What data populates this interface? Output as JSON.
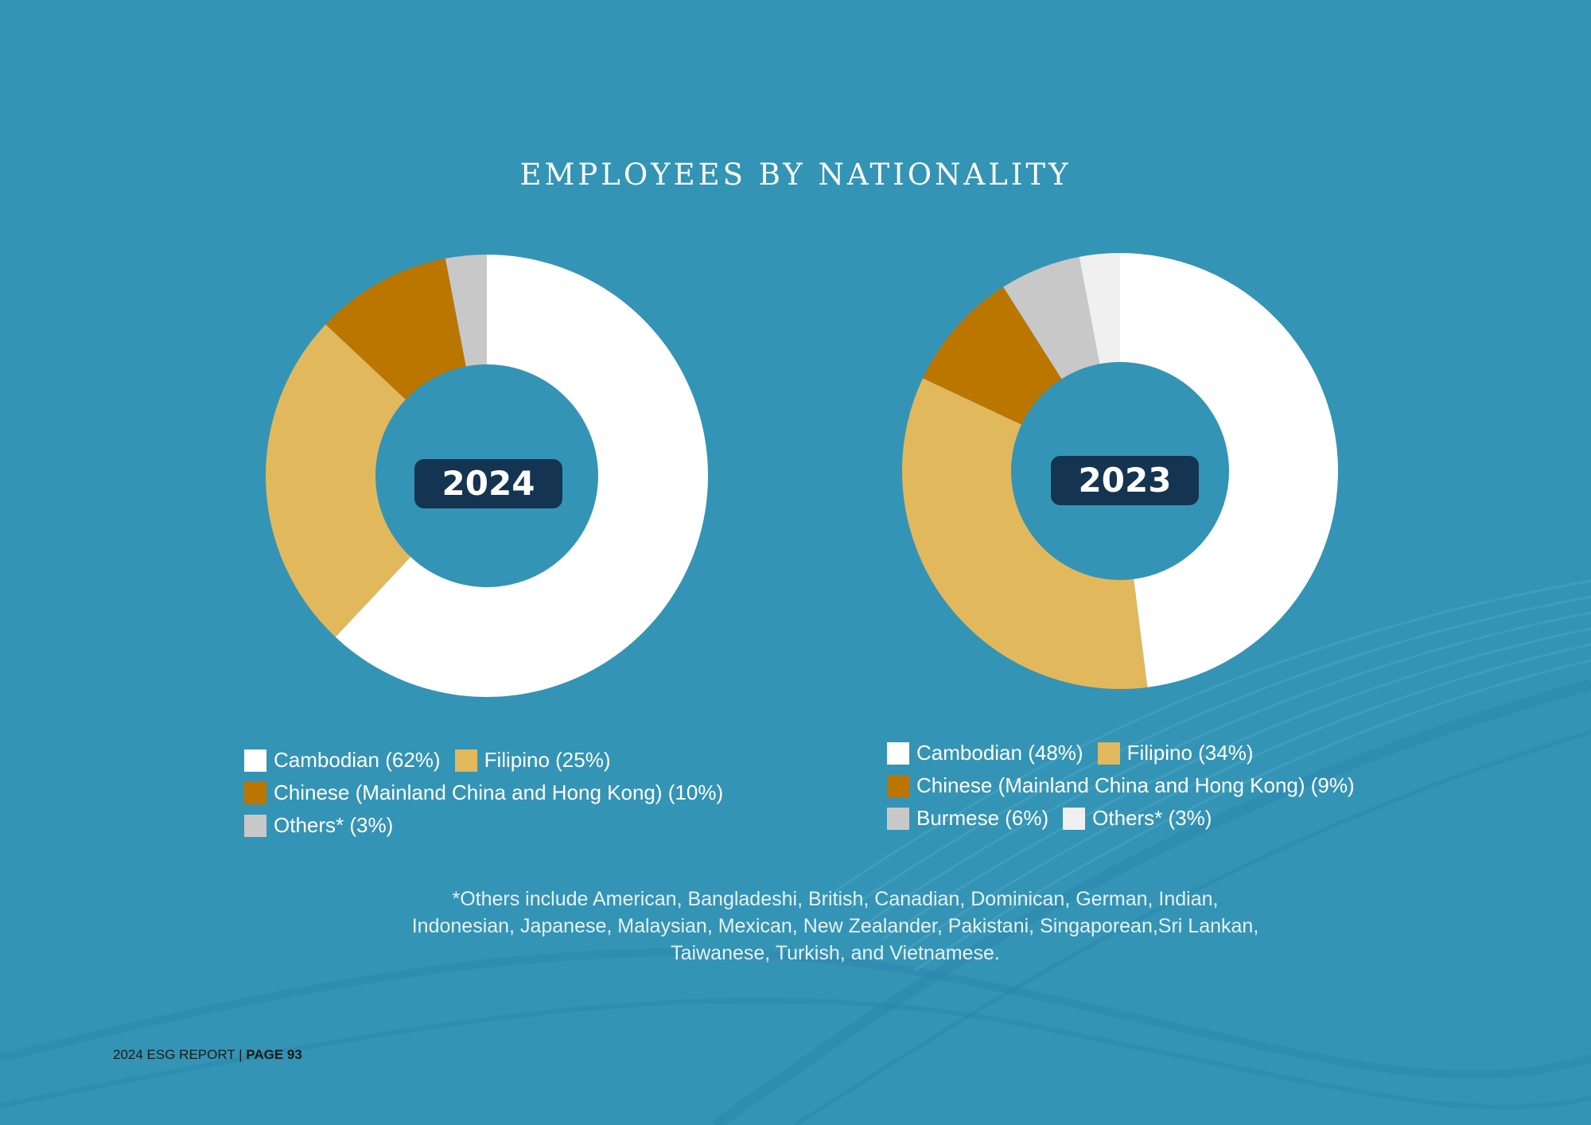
{
  "title": "EMPLOYEES BY NATIONALITY",
  "colors": {
    "background": "#3494b5",
    "cambodian": "#ffffff",
    "filipino": "#e2b85d",
    "chinese": "#bb7600",
    "others_2024": "#c8c8c8",
    "burmese": "#c8c8c8",
    "others_2023": "#f0f0f0",
    "badge": "#143451"
  },
  "chart_data": [
    {
      "type": "pie",
      "title": "2024",
      "categories": [
        "Cambodian",
        "Filipino",
        "Chinese (Mainland China and Hong Kong)",
        "Others*"
      ],
      "values": [
        62,
        25,
        10,
        3
      ],
      "colors": [
        "#ffffff",
        "#e2b85d",
        "#bb7600",
        "#c8c8c8"
      ],
      "legend_labels": [
        "Cambodian (62%)",
        "Filipino (25%)",
        "Chinese (Mainland China and Hong Kong) (10%)",
        "Others* (3%)"
      ]
    },
    {
      "type": "pie",
      "title": "2023",
      "categories": [
        "Cambodian",
        "Filipino",
        "Chinese (Mainland China and Hong Kong)",
        "Burmese",
        "Others*"
      ],
      "values": [
        48,
        34,
        9,
        6,
        3
      ],
      "colors": [
        "#ffffff",
        "#e2b85d",
        "#bb7600",
        "#c8c8c8",
        "#f0f0f0"
      ],
      "legend_labels": [
        "Cambodian (48%)",
        "Filipino (34%)",
        "Chinese (Mainland China and Hong Kong) (9%)",
        "Burmese (6%)",
        "Others* (3%)"
      ]
    }
  ],
  "footnote": {
    "line1": "*Others include American, Bangladeshi, British, Canadian, Dominican, German, Indian,",
    "line2": "Indonesian, Japanese, Malaysian, Mexican, New Zealander, Pakistani, Singaporean,Sri Lankan,",
    "line3": "Taiwanese, Turkish, and Vietnamese."
  },
  "footer": {
    "report": "2024 ESG REPORT | ",
    "page": "PAGE 93"
  }
}
